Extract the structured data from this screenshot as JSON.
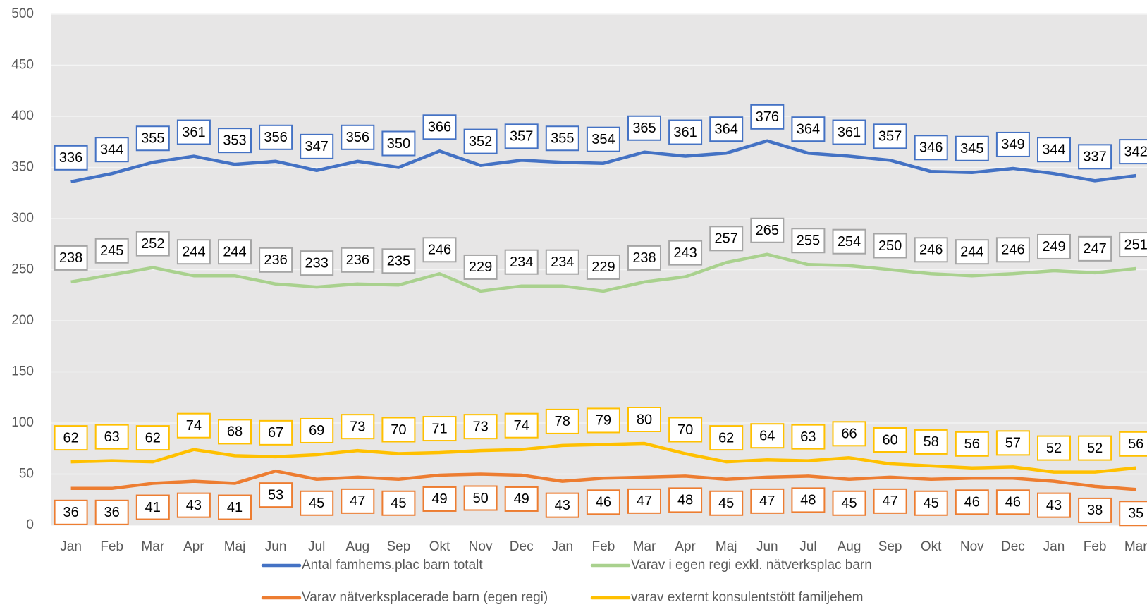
{
  "chart_data": {
    "type": "line",
    "categories": [
      "Jan",
      "Feb",
      "Mar",
      "Apr",
      "Maj",
      "Jun",
      "Jul",
      "Aug",
      "Sep",
      "Okt",
      "Nov",
      "Dec",
      "Jan",
      "Feb",
      "Mar",
      "Apr",
      "Maj",
      "Jun",
      "Jul",
      "Aug",
      "Sep",
      "Okt",
      "Nov",
      "Dec",
      "Jan",
      "Feb",
      "Mar"
    ],
    "series": [
      {
        "name": "Antal famhems.plac barn totalt",
        "color": "#4472c4",
        "label_color": "#4472c4",
        "label_side": "above",
        "values": [
          336,
          344,
          355,
          361,
          353,
          356,
          347,
          356,
          350,
          366,
          352,
          357,
          355,
          354,
          365,
          361,
          364,
          376,
          364,
          361,
          357,
          346,
          345,
          349,
          344,
          337,
          342
        ]
      },
      {
        "name": "Varav i egen regi exkl. nätverksplac barn",
        "color": "#a9d18e",
        "label_color": "#a5a5a5",
        "label_side": "above",
        "values": [
          238,
          245,
          252,
          244,
          244,
          236,
          233,
          236,
          235,
          246,
          229,
          234,
          234,
          229,
          238,
          243,
          257,
          265,
          255,
          254,
          250,
          246,
          244,
          246,
          249,
          247,
          251
        ]
      },
      {
        "name": "Varav nätverksplacerade barn (egen regi)",
        "color": "#ed7d31",
        "label_color": "#ed7d31",
        "label_side": "below",
        "values": [
          36,
          36,
          41,
          43,
          41,
          53,
          45,
          47,
          45,
          49,
          50,
          49,
          43,
          46,
          47,
          48,
          45,
          47,
          48,
          45,
          47,
          45,
          46,
          46,
          43,
          38,
          35
        ]
      },
      {
        "name": "varav externt konsulentstött familjehem",
        "color": "#ffc000",
        "label_color": "#ffc000",
        "label_side": "above",
        "values": [
          62,
          63,
          62,
          74,
          68,
          67,
          69,
          73,
          70,
          71,
          73,
          74,
          78,
          79,
          80,
          70,
          62,
          64,
          63,
          66,
          60,
          58,
          56,
          57,
          52,
          52,
          56
        ]
      }
    ],
    "ylim": [
      0,
      500
    ],
    "yticks": [
      0,
      50,
      100,
      150,
      200,
      250,
      300,
      350,
      400,
      450,
      500
    ],
    "grid": true,
    "legend": "bottom"
  }
}
